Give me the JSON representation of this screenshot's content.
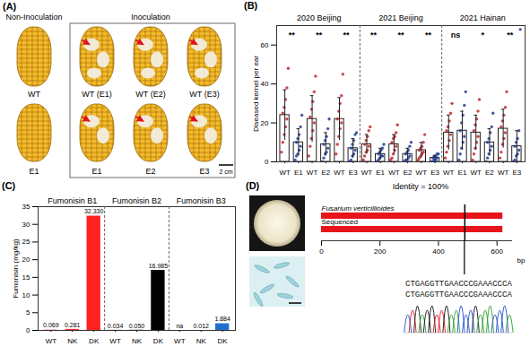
{
  "chart_data": [
    {
      "label": "(B)",
      "type": "bar",
      "ylabel": "Diseased kernel per ear",
      "ylim": [
        0,
        70
      ],
      "yticks": [
        0,
        20,
        40,
        60
      ],
      "colors": [
        "#c0272d",
        "#233d99",
        "#c0272d",
        "#233d99",
        "#c0272d",
        "#233d99"
      ],
      "groups": [
        {
          "name": "2020 Beijing",
          "categories": [
            "WT",
            "E1",
            "WT",
            "E2",
            "WT",
            "E3"
          ],
          "values": [
            24,
            10,
            22,
            9,
            22,
            7
          ],
          "errors": [
            13,
            7,
            12,
            6,
            11,
            5
          ],
          "points": [
            [
              5,
              10,
              14,
              18,
              22,
              25,
              28,
              32,
              38,
              48
            ],
            [
              1,
              3,
              4,
              6,
              8,
              10,
              12,
              14,
              18,
              24
            ],
            [
              3,
              8,
              12,
              16,
              20,
              23,
              27,
              31,
              36,
              44
            ],
            [
              0,
              2,
              4,
              5,
              7,
              9,
              11,
              13,
              17,
              22
            ],
            [
              4,
              9,
              13,
              17,
              20,
              22,
              26,
              30,
              34,
              45
            ],
            [
              0,
              1,
              3,
              4,
              6,
              7,
              9,
              11,
              14,
              15
            ]
          ],
          "significance": [
            "**",
            "**",
            "**"
          ]
        },
        {
          "name": "2021 Beijing",
          "categories": [
            "WT",
            "E1",
            "WT",
            "E2",
            "WT",
            "E3"
          ],
          "values": [
            9,
            4,
            9,
            4,
            6,
            2
          ],
          "errors": [
            5,
            3,
            5,
            3,
            4,
            1
          ],
          "points": [
            [
              1,
              3,
              5,
              6,
              8,
              9,
              11,
              13,
              16,
              18
            ],
            [
              0,
              1,
              2,
              3,
              3,
              4,
              5,
              6,
              7,
              9
            ],
            [
              1,
              2,
              4,
              6,
              8,
              10,
              12,
              13,
              15,
              19
            ],
            [
              0,
              1,
              1,
              2,
              3,
              4,
              5,
              6,
              8,
              10
            ],
            [
              1,
              2,
              3,
              4,
              5,
              6,
              7,
              8,
              10,
              14
            ],
            [
              0,
              0,
              1,
              1,
              2,
              2,
              3,
              3,
              4,
              4
            ]
          ],
          "significance": [
            "**",
            "**",
            "**"
          ]
        },
        {
          "name": "2021 Hainan",
          "categories": [
            "WT",
            "E1",
            "WT",
            "E2",
            "WT",
            "E3"
          ],
          "values": [
            15,
            16,
            15,
            10,
            17,
            8
          ],
          "errors": [
            9,
            10,
            9,
            7,
            10,
            8
          ],
          "points": [
            [
              2,
              5,
              8,
              11,
              14,
              16,
              18,
              21,
              25,
              30
            ],
            [
              1,
              4,
              7,
              10,
              13,
              16,
              20,
              24,
              29,
              36
            ],
            [
              1,
              4,
              7,
              10,
              13,
              16,
              19,
              22,
              26,
              32
            ],
            [
              0,
              2,
              4,
              6,
              8,
              10,
              12,
              15,
              18,
              25
            ],
            [
              2,
              5,
              9,
              12,
              15,
              18,
              21,
              24,
              28,
              36
            ],
            [
              0,
              1,
              3,
              4,
              6,
              8,
              10,
              12,
              16,
              68
            ]
          ],
          "significance": [
            "ns",
            "*",
            "**"
          ]
        }
      ]
    },
    {
      "label": "(C)",
      "type": "bar",
      "ylabel": "Fumonisin (mg/kg)",
      "ylim": [
        0,
        35
      ],
      "yticks": [
        0,
        5,
        10,
        15,
        20,
        25,
        30,
        35
      ],
      "data_labels": true,
      "groups": [
        {
          "name": "Fumonisin B1",
          "categories": [
            "WT",
            "NK",
            "DK"
          ],
          "values": [
            0.069,
            0.281,
            32.33
          ],
          "value_labels": [
            "0.069",
            "0.281",
            "32.330"
          ],
          "color": "#ff2020"
        },
        {
          "name": "Fumonisin B2",
          "categories": [
            "WT",
            "NK",
            "DK"
          ],
          "values": [
            0.034,
            0.05,
            16.985
          ],
          "value_labels": [
            "0.034",
            "0.050",
            "16.985"
          ],
          "color": "#000000"
        },
        {
          "name": "Fumonisin B3",
          "categories": [
            "WT",
            "NK",
            "DK"
          ],
          "values": [
            null,
            0.012,
            1.884
          ],
          "value_labels": [
            "na",
            "0.012",
            "1.884"
          ],
          "color": "#1f6fd1"
        }
      ]
    }
  ],
  "panels": {
    "A": {
      "label": "(A)",
      "groups": [
        "Non-Inoculation",
        "Inoculation"
      ],
      "top_row": [
        "WT",
        "WT (E1)",
        "WT (E2)",
        "WT (E3)"
      ],
      "bottom_row": [
        "E1",
        "E1",
        "E2",
        "E3"
      ],
      "scale_bar": "2 cm"
    },
    "D": {
      "label": "(D)",
      "title": "Identity = 100%",
      "tracks": [
        {
          "name": "Fusarium verticillioides",
          "start": 0,
          "end": 620,
          "color": "#e8141b"
        },
        {
          "name": "Sequenced",
          "start": 0,
          "end": 620,
          "color": "#e8141b"
        }
      ],
      "xlim": [
        0,
        650
      ],
      "xticks": [
        0,
        200,
        400,
        600
      ],
      "xlabel": "bp",
      "highlight": 490,
      "sequences": [
        "CTGAGGTTGAACCCGAAACCCA",
        "CTGAGGTTGAACCCGAAACCCA"
      ]
    }
  }
}
